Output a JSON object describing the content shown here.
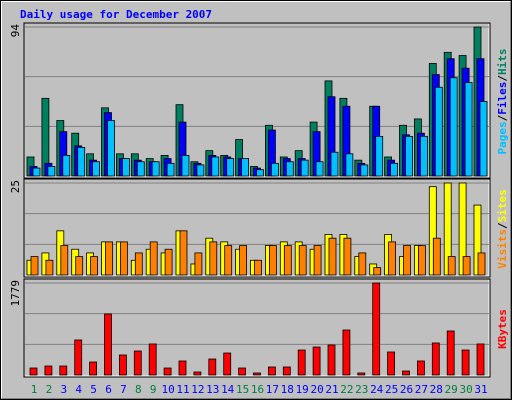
{
  "chart_data": [
    {
      "type": "bar",
      "title": "Daily usage for December 2007",
      "legend_separator": "/",
      "ylim": [
        0,
        94
      ],
      "yticks": [
        94
      ],
      "series": [
        {
          "name": "Hits",
          "color": "#008060",
          "values": [
            12,
            49,
            35,
            27,
            14,
            43,
            14,
            14,
            11,
            13,
            45,
            9,
            16,
            13,
            23,
            6,
            32,
            12,
            16,
            34,
            60,
            49,
            10,
            44,
            12,
            32,
            36,
            71,
            78,
            76,
            94
          ]
        },
        {
          "name": "Files",
          "color": "#0000ff",
          "values": [
            6,
            8,
            28,
            19,
            10,
            40,
            11,
            10,
            9,
            11,
            34,
            8,
            13,
            12,
            11,
            5,
            29,
            11,
            11,
            28,
            50,
            44,
            8,
            44,
            10,
            26,
            27,
            64,
            74,
            68,
            74
          ]
        },
        {
          "name": "Pages",
          "color": "#00c0ff",
          "values": [
            5,
            6,
            13,
            18,
            9,
            35,
            11,
            9,
            9,
            8,
            13,
            7,
            12,
            11,
            11,
            4,
            8,
            9,
            10,
            9,
            15,
            14,
            7,
            25,
            8,
            25,
            25,
            56,
            62,
            59,
            47
          ]
        }
      ]
    },
    {
      "type": "bar",
      "legend_separator": "/",
      "ylim": [
        0,
        25
      ],
      "yticks": [
        25
      ],
      "series": [
        {
          "name": "Sites",
          "color": "#ffff00",
          "values": [
            4,
            6,
            12,
            7,
            6,
            9,
            9,
            4,
            7,
            6,
            12,
            3,
            10,
            9,
            7,
            4,
            8,
            9,
            9,
            7,
            11,
            11,
            5,
            3,
            11,
            5,
            8,
            24,
            25,
            25,
            19
          ]
        },
        {
          "name": "Visits",
          "color": "#ff8000",
          "values": [
            5,
            4,
            8,
            5,
            5,
            9,
            9,
            6,
            9,
            7,
            12,
            6,
            9,
            8,
            8,
            4,
            8,
            8,
            8,
            8,
            10,
            10,
            6,
            2,
            9,
            8,
            8,
            10,
            5,
            5,
            6
          ]
        }
      ]
    },
    {
      "type": "bar",
      "ylim": [
        0,
        1779
      ],
      "yticks": [
        1779
      ],
      "categories": [
        "1",
        "2",
        "3",
        "4",
        "5",
        "6",
        "7",
        "8",
        "9",
        "10",
        "11",
        "12",
        "13",
        "14",
        "15",
        "16",
        "17",
        "18",
        "19",
        "20",
        "21",
        "22",
        "23",
        "24",
        "25",
        "26",
        "27",
        "28",
        "29",
        "30",
        "31"
      ],
      "category_colors": [
        "#008040",
        "#008040",
        "#0000ff",
        "#0000ff",
        "#0000ff",
        "#0000ff",
        "#0000ff",
        "#008040",
        "#008040",
        "#0000ff",
        "#0000ff",
        "#0000ff",
        "#0000ff",
        "#0000ff",
        "#008040",
        "#008040",
        "#0000ff",
        "#0000ff",
        "#0000ff",
        "#0000ff",
        "#0000ff",
        "#008040",
        "#008040",
        "#0000ff",
        "#0000ff",
        "#0000ff",
        "#0000ff",
        "#0000ff",
        "#008040",
        "#008040",
        "#0000ff"
      ],
      "series": [
        {
          "name": "KBytes",
          "color": "#ff0000",
          "values": [
            135,
            174,
            174,
            677,
            251,
            1180,
            387,
            464,
            600,
            135,
            271,
            58,
            309,
            425,
            135,
            39,
            155,
            155,
            483,
            541,
            580,
            870,
            39,
            1779,
            445,
            77,
            271,
            619,
            851,
            483,
            600
          ]
        }
      ]
    }
  ]
}
